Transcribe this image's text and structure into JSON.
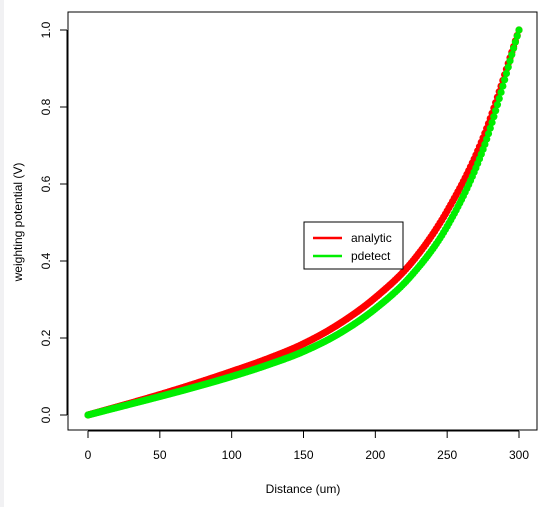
{
  "chart_data": {
    "type": "line",
    "title": "",
    "xlabel": "Distance (um)",
    "ylabel": "weighting potential (V)",
    "xlim": [
      0,
      300
    ],
    "ylim": [
      0,
      1
    ],
    "x_ticks": [
      "0",
      "50",
      "100",
      "150",
      "200",
      "250",
      "300"
    ],
    "y_ticks": [
      "0.0",
      "0.2",
      "0.4",
      "0.6",
      "0.8",
      "1.0"
    ],
    "grid": false,
    "legend_position": "center-right",
    "series": [
      {
        "name": "analytic",
        "color": "#ff0000",
        "x": [
          0,
          25,
          50,
          75,
          100,
          125,
          150,
          175,
          200,
          225,
          250,
          275,
          300
        ],
        "values": [
          0.0,
          0.026,
          0.053,
          0.082,
          0.113,
          0.146,
          0.185,
          0.237,
          0.305,
          0.395,
          0.53,
          0.72,
          1.0
        ]
      },
      {
        "name": "pdetect",
        "color": "#00ee00",
        "x": [
          0,
          25,
          50,
          75,
          100,
          125,
          150,
          175,
          200,
          225,
          250,
          275,
          300
        ],
        "values": [
          0.0,
          0.024,
          0.048,
          0.073,
          0.1,
          0.13,
          0.165,
          0.212,
          0.276,
          0.362,
          0.49,
          0.69,
          1.0
        ]
      }
    ]
  }
}
